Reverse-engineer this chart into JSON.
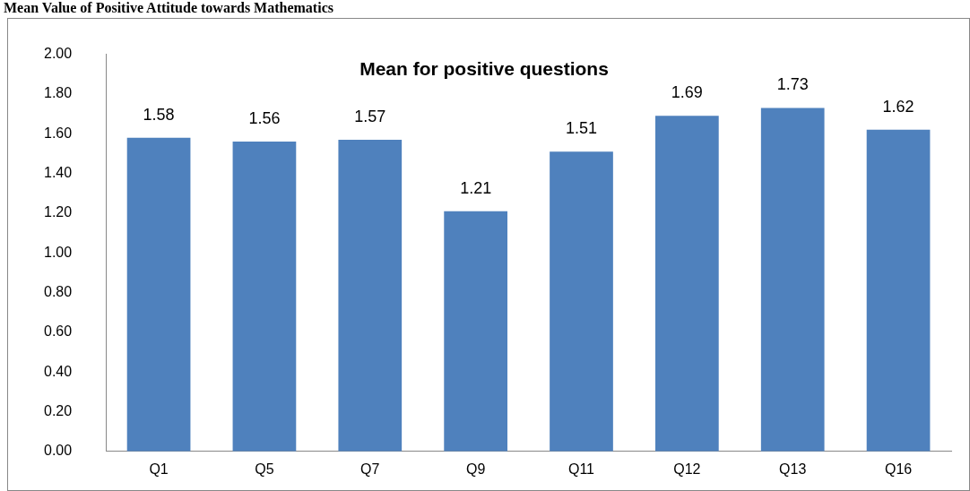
{
  "chart_data": {
    "type": "bar",
    "title": "Mean for positive questions",
    "annotations": [
      "Mean Value of Positive Attitude towards Mathematics"
    ],
    "categories": [
      "Q1",
      "Q5",
      "Q7",
      "Q9",
      "Q11",
      "Q12",
      "Q13",
      "Q16"
    ],
    "values": [
      1.58,
      1.56,
      1.57,
      1.21,
      1.51,
      1.69,
      1.73,
      1.62
    ],
    "color": "#4f81bd",
    "ylim": [
      0,
      2
    ],
    "yticks": [
      {
        "value": 0,
        "label": "0.00"
      },
      {
        "value": 0.2,
        "label": "0.20"
      },
      {
        "value": 0.4,
        "label": "0.40"
      },
      {
        "value": 0.6,
        "label": "0.60"
      },
      {
        "value": 0.8,
        "label": "0.80"
      },
      {
        "value": 1,
        "label": "1.00"
      },
      {
        "value": 1.2,
        "label": "1.20"
      },
      {
        "value": 1.4,
        "label": "1.40"
      },
      {
        "value": 1.6,
        "label": "1.60"
      },
      {
        "value": 1.8,
        "label": "1.80"
      },
      {
        "value": 2,
        "label": "2.00"
      }
    ],
    "grid": false,
    "legend": false,
    "data_labels": true
  }
}
